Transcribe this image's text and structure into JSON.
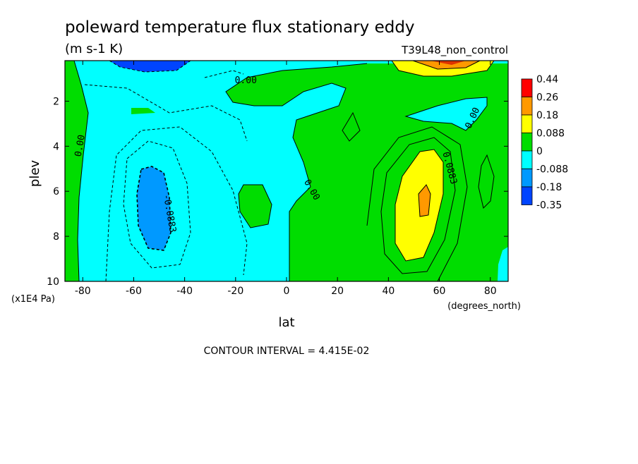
{
  "chart_data": {
    "type": "heatmap",
    "title": "poleward temperature flux stationary eddy",
    "units": "(m s-1 K)",
    "run_label": "T39L48_non_control",
    "xlabel": "lat",
    "x_units": "(degrees_north)",
    "ylabel": "plev",
    "y_units": "(x1E4 Pa)",
    "contour_interval_text": "CONTOUR INTERVAL = 4.415E-02",
    "xlim": [
      -87,
      87
    ],
    "ylim": [
      10,
      0.2
    ],
    "x_ticks": [
      "-80",
      "-60",
      "-40",
      "-20",
      "0",
      "20",
      "40",
      "60",
      "80"
    ],
    "x_tick_values": [
      -80,
      -60,
      -40,
      -20,
      0,
      20,
      40,
      60,
      80
    ],
    "y_ticks": [
      "2",
      "4",
      "6",
      "8",
      "10"
    ],
    "y_tick_values": [
      2,
      4,
      6,
      8,
      10
    ],
    "legend": {
      "placement": "right",
      "labels": [
        "0.44",
        "0.26",
        "0.18",
        "0.088",
        "0",
        "-0.088",
        "-0.18",
        "-0.35"
      ],
      "colors": [
        "#ff0000",
        "#ff9900",
        "#ffff00",
        "#00dd00",
        "#00ffff",
        "#0099ff",
        "#0044ff"
      ]
    },
    "contour_labels": [
      {
        "text": "0.00",
        "lat": -16,
        "plev": 1.2
      },
      {
        "text": "0.00",
        "lat": -80,
        "plev": 4.0
      },
      {
        "text": "0.00",
        "lat": 9,
        "plev": 6.0
      },
      {
        "text": "0.00",
        "lat": 74,
        "plev": 2.8
      },
      {
        "text": "-0.0883",
        "lat": -47,
        "plev": 7.0
      },
      {
        "text": "0.0883",
        "lat": 63,
        "plev": 5.0
      }
    ]
  }
}
